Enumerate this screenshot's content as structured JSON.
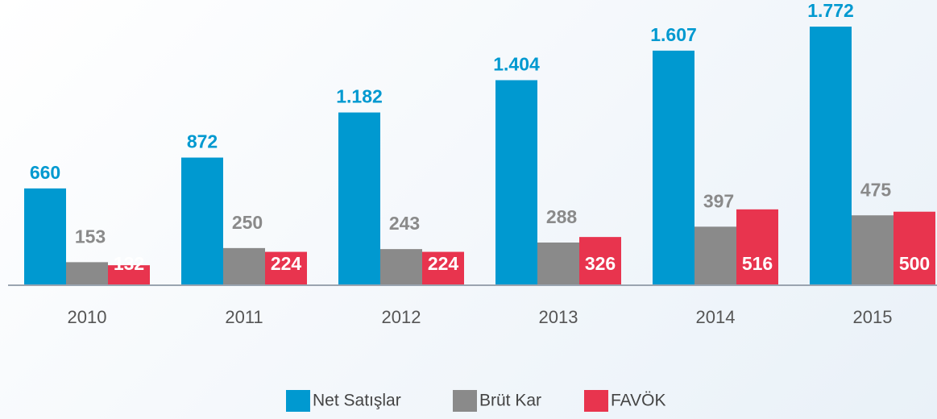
{
  "chart_data": {
    "type": "bar",
    "categories": [
      "2010",
      "2011",
      "2012",
      "2013",
      "2014",
      "2015"
    ],
    "series": [
      {
        "name": "Net Satışlar",
        "color": "#0099d0",
        "values": [
          660,
          872,
          1182,
          1404,
          1607,
          1772
        ],
        "value_labels": [
          "660",
          "872",
          "1.182",
          "1.404",
          "1.607",
          "1.772"
        ]
      },
      {
        "name": "Brüt Kar",
        "color": "#8a8a8a",
        "values": [
          153,
          250,
          243,
          288,
          397,
          475
        ]
      },
      {
        "name": "FAVÖK",
        "color": "#e8344e",
        "values": [
          132,
          224,
          224,
          326,
          516,
          500
        ]
      }
    ],
    "ylim": [
      0,
      1800
    ]
  }
}
